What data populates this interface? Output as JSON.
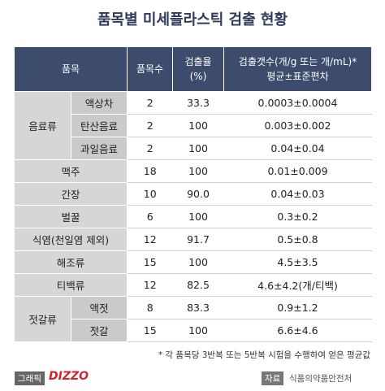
{
  "title": "품목별 미세플라스틱 검출 현황",
  "table": {
    "header": [
      "품목",
      "품목수",
      [
        "검출율",
        "(%)"
      ],
      [
        "검출갯수(개/g 또는 개/mL)*",
        "평균±표준편차"
      ]
    ],
    "rows": [
      {
        "label": "음료류",
        "subrows": [
          [
            "액상차",
            "2",
            "33.3",
            "0.0003±0.0004"
          ],
          [
            "탄산음료",
            "2",
            "100",
            "0.003±0.002"
          ],
          [
            "과일음료",
            "2",
            "100",
            "0.04±0.04"
          ]
        ]
      },
      {
        "label": "맥주",
        "cells": [
          "18",
          "100",
          "0.01±0.009"
        ]
      },
      {
        "label": "간장",
        "cells": [
          "10",
          "90.0",
          "0.04±0.03"
        ]
      },
      {
        "label": "벌꿀",
        "cells": [
          "6",
          "100",
          "0.3±0.2"
        ]
      },
      {
        "label": "식염(천일염 제외)",
        "cells": [
          "12",
          "91.7",
          "0.5±0.8"
        ]
      },
      {
        "label": "해조류",
        "cells": [
          "15",
          "100",
          "4.5±3.5"
        ]
      },
      {
        "label": "티백류",
        "cells": [
          "12",
          "82.5",
          "4.6±4.2(개/티백)"
        ]
      },
      {
        "label": "젓갈류",
        "subrows": [
          [
            "액젓",
            "8",
            "83.3",
            "0.9±1.2"
          ],
          [
            "젓갈",
            "15",
            "100",
            "6.6±4.6"
          ]
        ]
      }
    ]
  },
  "footnote": "* 각 품목당 3반복 또는 5반복 시험을 수행하여 얻은 평균값",
  "credit": {
    "graphic_label": "그래픽",
    "graphic_logo": "DIZZO",
    "source_label": "자료",
    "source": "식품의약품안전처"
  }
}
